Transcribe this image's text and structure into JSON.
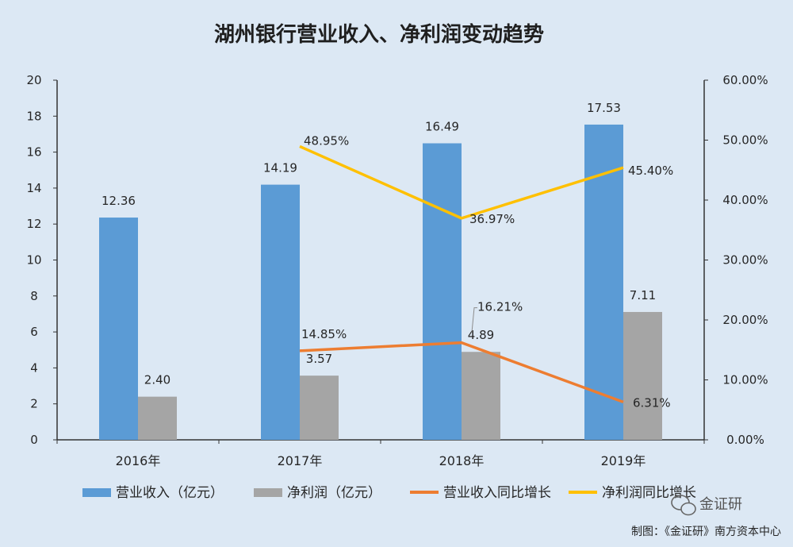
{
  "chart_data": {
    "type": "bar",
    "title": "湖州银行营业收入、净利润变动趋势",
    "categories": [
      "2016年",
      "2017年",
      "2018年",
      "2019年"
    ],
    "ylim": [
      0,
      20
    ],
    "y_ticks": [
      "0",
      "2",
      "4",
      "6",
      "8",
      "10",
      "12",
      "14",
      "16",
      "18",
      "20"
    ],
    "y2lim": [
      0,
      0.6
    ],
    "y2_ticks": [
      "0.00%",
      "10.00%",
      "20.00%",
      "30.00%",
      "40.00%",
      "50.00%",
      "60.00%"
    ],
    "series": [
      {
        "name": "营业收入（亿元）",
        "type": "bar",
        "axis": "left",
        "color": "#5b9bd5",
        "values": [
          12.36,
          14.19,
          16.49,
          17.53
        ],
        "labels": [
          "12.36",
          "14.19",
          "16.49",
          "17.53"
        ]
      },
      {
        "name": "净利润（亿元）",
        "type": "bar",
        "axis": "left",
        "color": "#a5a5a5",
        "values": [
          2.4,
          3.57,
          4.89,
          7.11
        ],
        "labels": [
          "2.40",
          "3.57",
          "4.89",
          "7.11"
        ]
      },
      {
        "name": "营业收入同比增长",
        "type": "line",
        "axis": "right",
        "color": "#ed7d31",
        "values": [
          null,
          0.1485,
          0.1621,
          0.0631
        ],
        "labels": [
          "",
          "14.85%",
          "16.21%",
          "6.31%"
        ]
      },
      {
        "name": "净利润同比增长",
        "type": "line",
        "axis": "right",
        "color": "#ffc000",
        "values": [
          null,
          0.4895,
          0.3697,
          0.454
        ],
        "labels": [
          "",
          "48.95%",
          "36.97%",
          "45.40%"
        ]
      }
    ],
    "legend_position": "bottom",
    "grid": false
  },
  "footer": {
    "watermark": "金证研",
    "credit": "制图：《金证研》南方资本中心"
  }
}
